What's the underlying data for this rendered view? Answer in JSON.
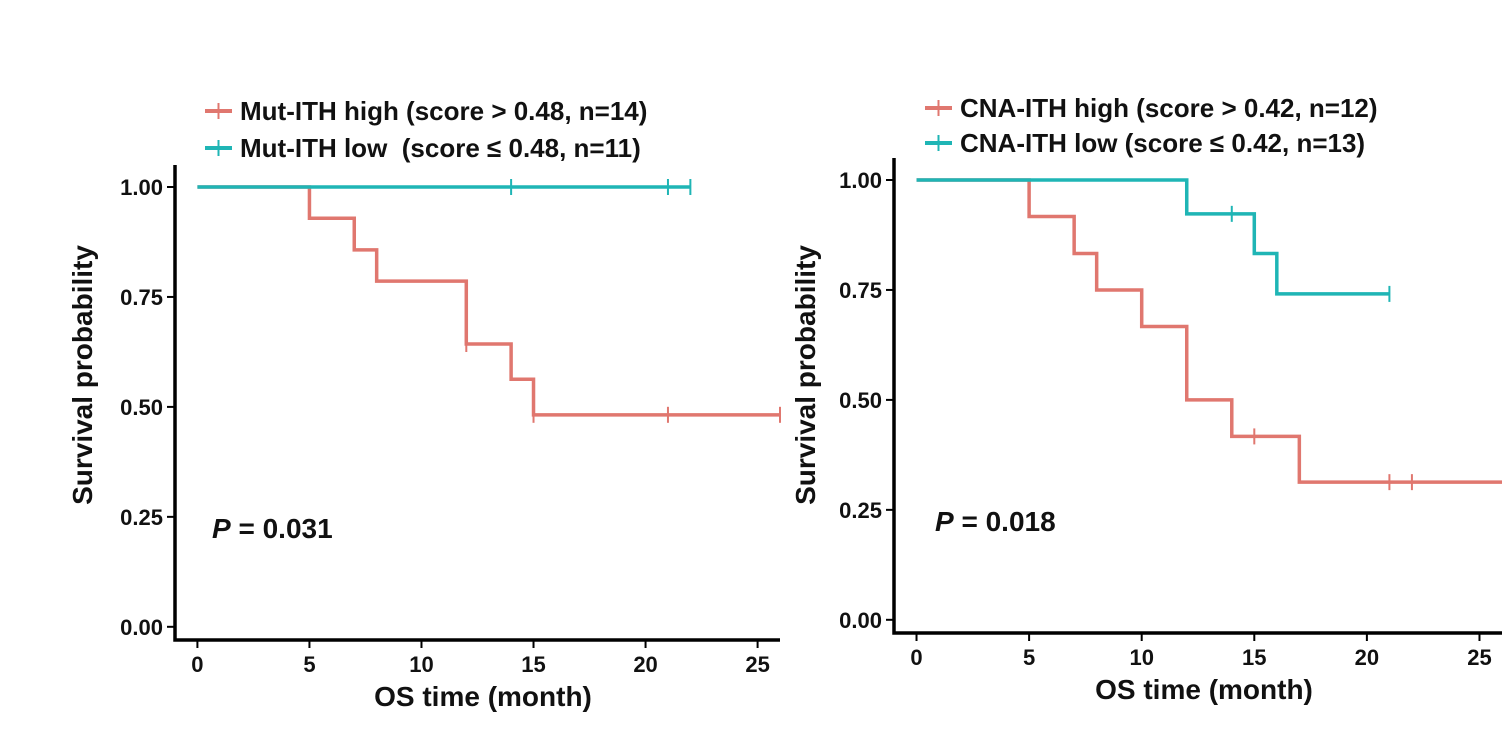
{
  "colors": {
    "high": "#e0776f",
    "low": "#1fb5b5"
  },
  "chart_data": [
    {
      "type": "line",
      "subtype": "kaplan-meier",
      "xlabel": "OS time (month)",
      "ylabel": "Survival probability",
      "xlim": [
        -1,
        26
      ],
      "ylim": [
        -0.03,
        1.05
      ],
      "xticks": [
        0,
        5,
        10,
        15,
        20,
        25
      ],
      "xtick_labels": [
        "0",
        "5",
        "10",
        "15",
        "20",
        "25"
      ],
      "yticks": [
        0,
        0.25,
        0.5,
        0.75,
        1
      ],
      "ytick_labels": [
        "0.00",
        "0.25",
        "0.50",
        "0.75",
        "1.00"
      ],
      "pvalue": {
        "label": "P",
        "text": " = 0.031"
      },
      "legend_position": "top-left",
      "series": [
        {
          "name": "Mut-ITH high (score > 0.48, n=14)",
          "color_key": "high",
          "steps": [
            [
              0,
              1.0
            ],
            [
              5,
              0.929
            ],
            [
              7,
              0.857
            ],
            [
              8,
              0.786
            ],
            [
              12,
              0.643
            ],
            [
              14,
              0.563
            ],
            [
              15,
              0.482
            ]
          ],
          "end": 26,
          "censors": [
            [
              12,
              0.643
            ],
            [
              15,
              0.482
            ],
            [
              21,
              0.482
            ],
            [
              26,
              0.482
            ]
          ]
        },
        {
          "name": "Mut-ITH low  (score ≤ 0.48, n=11)",
          "color_key": "low",
          "steps": [
            [
              0,
              1.0
            ]
          ],
          "end": 22,
          "censors": [
            [
              14,
              1.0
            ],
            [
              21,
              1.0
            ],
            [
              22,
              1.0
            ]
          ]
        }
      ]
    },
    {
      "type": "line",
      "subtype": "kaplan-meier",
      "xlabel": "OS time (month)",
      "ylabel": "Survival probability",
      "xlim": [
        -1,
        26
      ],
      "ylim": [
        -0.03,
        1.05
      ],
      "xticks": [
        0,
        5,
        10,
        15,
        20,
        25
      ],
      "xtick_labels": [
        "0",
        "5",
        "10",
        "15",
        "20",
        "25"
      ],
      "yticks": [
        0,
        0.25,
        0.5,
        0.75,
        1
      ],
      "ytick_labels": [
        "0.00",
        "0.25",
        "0.50",
        "0.75",
        "1.00"
      ],
      "pvalue": {
        "label": "P",
        "text": " = 0.018"
      },
      "legend_position": "top-left",
      "series": [
        {
          "name": "CNA-ITH high (score > 0.42, n=12)",
          "color_key": "high",
          "steps": [
            [
              0,
              1.0
            ],
            [
              5,
              0.917
            ],
            [
              7,
              0.833
            ],
            [
              8,
              0.75
            ],
            [
              10,
              0.667
            ],
            [
              12,
              0.5
            ],
            [
              14,
              0.417
            ],
            [
              17,
              0.313
            ]
          ],
          "end": 26,
          "censors": [
            [
              15,
              0.417
            ],
            [
              21,
              0.313
            ],
            [
              22,
              0.313
            ]
          ]
        },
        {
          "name": "CNA-ITH low (score ≤ 0.42, n=13)",
          "color_key": "low",
          "steps": [
            [
              0,
              1.0
            ],
            [
              12,
              0.923
            ],
            [
              15,
              0.833
            ],
            [
              16,
              0.741
            ]
          ],
          "end": 21,
          "censors": [
            [
              14,
              0.923
            ],
            [
              21,
              0.741
            ]
          ]
        }
      ]
    }
  ]
}
